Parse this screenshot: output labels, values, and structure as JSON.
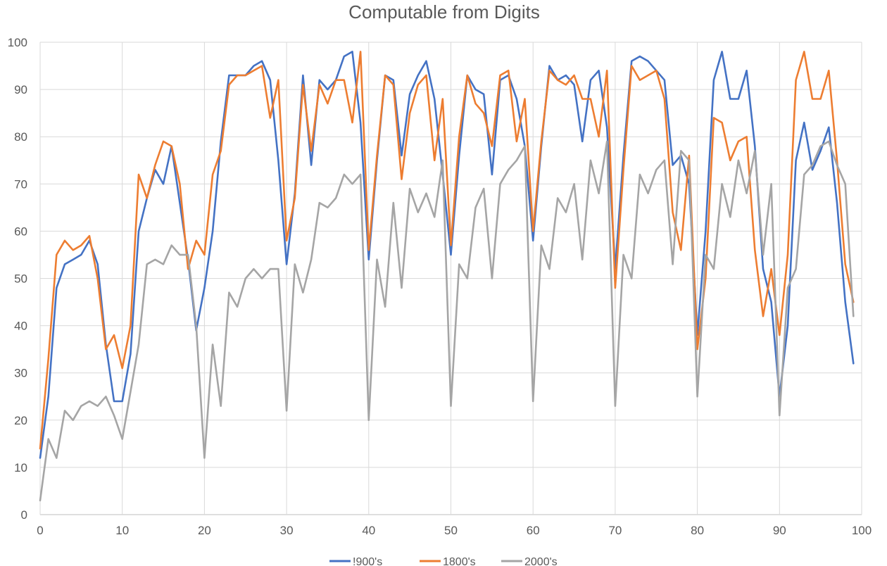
{
  "chart_data": {
    "type": "line",
    "title": "Computable from Digits",
    "xlabel": "",
    "ylabel": "",
    "xlim": [
      0,
      100
    ],
    "ylim": [
      0,
      100
    ],
    "xticks": [
      0,
      10,
      20,
      30,
      40,
      50,
      60,
      70,
      80,
      90,
      100
    ],
    "yticks": [
      0,
      10,
      20,
      30,
      40,
      50,
      60,
      70,
      80,
      90,
      100
    ],
    "grid": true,
    "legend": "bottom",
    "x": [
      0,
      1,
      2,
      3,
      4,
      5,
      6,
      7,
      8,
      9,
      10,
      11,
      12,
      13,
      14,
      15,
      16,
      17,
      18,
      19,
      20,
      21,
      22,
      23,
      24,
      25,
      26,
      27,
      28,
      29,
      30,
      31,
      32,
      33,
      34,
      35,
      36,
      37,
      38,
      39,
      40,
      41,
      42,
      43,
      44,
      45,
      46,
      47,
      48,
      49,
      50,
      51,
      52,
      53,
      54,
      55,
      56,
      57,
      58,
      59,
      60,
      61,
      62,
      63,
      64,
      65,
      66,
      67,
      68,
      69,
      70,
      71,
      72,
      73,
      74,
      75,
      76,
      77,
      78,
      79,
      80,
      81,
      82,
      83,
      84,
      85,
      86,
      87,
      88,
      89,
      90,
      91,
      92,
      93,
      94,
      95,
      96,
      97,
      98,
      99
    ],
    "series": [
      {
        "name": "!900's",
        "color": "#4472c4",
        "values": [
          12,
          25,
          48,
          53,
          54,
          55,
          58,
          53,
          36,
          24,
          24,
          34,
          60,
          67,
          73,
          70,
          78,
          66,
          54,
          39,
          48,
          60,
          79,
          93,
          93,
          93,
          95,
          96,
          92,
          75,
          53,
          68,
          93,
          74,
          92,
          90,
          92,
          97,
          98,
          83,
          54,
          75,
          93,
          92,
          76,
          89,
          93,
          96,
          88,
          72,
          55,
          76,
          93,
          90,
          89,
          72,
          92,
          93,
          88,
          78,
          58,
          78,
          95,
          92,
          93,
          91,
          79,
          92,
          94,
          82,
          52,
          76,
          96,
          97,
          96,
          94,
          92,
          74,
          76,
          70,
          38,
          60,
          92,
          98,
          88,
          88,
          94,
          78,
          52,
          45,
          25,
          40,
          75,
          83,
          73,
          77,
          82,
          66,
          45,
          32
        ]
      },
      {
        "name": "1800's",
        "color": "#ed7d31",
        "values": [
          14,
          33,
          55,
          58,
          56,
          57,
          59,
          50,
          35,
          38,
          31,
          40,
          72,
          67,
          74,
          79,
          78,
          70,
          52,
          58,
          55,
          72,
          77,
          91,
          93,
          93,
          94,
          95,
          84,
          92,
          58,
          67,
          91,
          77,
          91,
          87,
          92,
          92,
          83,
          98,
          56,
          76,
          93,
          91,
          71,
          85,
          91,
          93,
          75,
          88,
          57,
          80,
          93,
          87,
          85,
          78,
          93,
          94,
          79,
          88,
          60,
          79,
          94,
          92,
          91,
          93,
          88,
          88,
          80,
          94,
          48,
          73,
          95,
          92,
          93,
          94,
          88,
          64,
          56,
          76,
          35,
          50,
          84,
          83,
          75,
          79,
          80,
          56,
          42,
          52,
          38,
          55,
          92,
          98,
          88,
          88,
          94,
          75,
          53,
          45
        ]
      },
      {
        "name": "2000's",
        "color": "#a5a5a5",
        "values": [
          3,
          16,
          12,
          22,
          20,
          23,
          24,
          23,
          25,
          21,
          16,
          26,
          36,
          53,
          54,
          53,
          57,
          55,
          55,
          40,
          12,
          36,
          23,
          47,
          44,
          50,
          52,
          50,
          52,
          52,
          22,
          53,
          47,
          54,
          66,
          65,
          67,
          72,
          70,
          72,
          20,
          54,
          44,
          66,
          48,
          69,
          64,
          68,
          63,
          75,
          23,
          53,
          50,
          65,
          69,
          50,
          70,
          73,
          75,
          78,
          24,
          57,
          52,
          67,
          64,
          70,
          54,
          75,
          68,
          79,
          23,
          55,
          50,
          72,
          68,
          73,
          75,
          53,
          77,
          75,
          25,
          55,
          52,
          70,
          63,
          75,
          68,
          77,
          55,
          70,
          21,
          48,
          52,
          72,
          74,
          78,
          79,
          74,
          70,
          42
        ]
      }
    ]
  }
}
